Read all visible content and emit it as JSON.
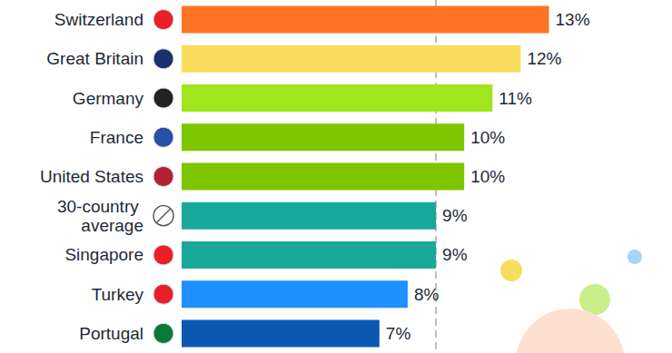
{
  "chart_data": {
    "type": "bar",
    "orientation": "horizontal",
    "categories": [
      "Switzerland",
      "Great Britain",
      "Germany",
      "France",
      "United States",
      "30-country average",
      "Singapore",
      "Turkey",
      "Portugal"
    ],
    "values": [
      13,
      12,
      11,
      10,
      10,
      9,
      9,
      8,
      7
    ],
    "value_labels": [
      "13%",
      "12%",
      "11%",
      "10%",
      "10%",
      "9%",
      "9%",
      "8%",
      "7%"
    ],
    "colors": [
      "#ff7424",
      "#f8dc5c",
      "#9fe61d",
      "#7dc600",
      "#7dc600",
      "#19a99a",
      "#19a99a",
      "#1e91ff",
      "#0b57b2"
    ],
    "xlim": [
      0,
      17
    ],
    "xticks": [
      9
    ],
    "grid": true,
    "tick_labels": false,
    "data_labels": true
  }
}
